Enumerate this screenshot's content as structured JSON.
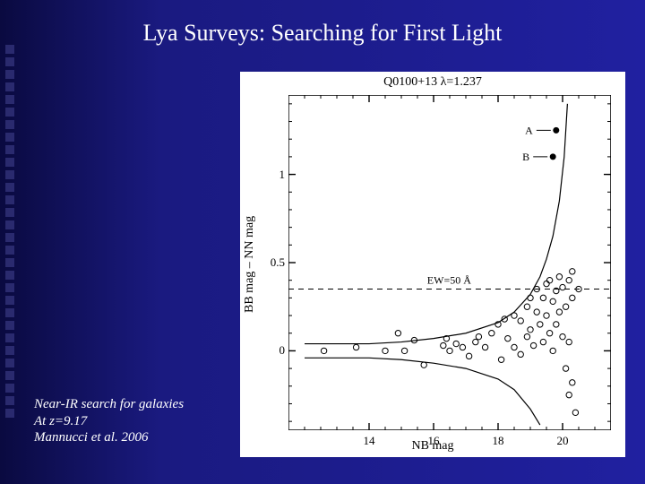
{
  "slide": {
    "title": "Lya Surveys: Searching for First Light",
    "caption_line1": "Near-IR search for galaxies",
    "caption_line2": "At z=9.17",
    "caption_line3": "Mannucci et al. 2006",
    "background_gradient": [
      "#0a0a40",
      "#1a1a80",
      "#2020a0"
    ],
    "decor_color": "#5a5ab0"
  },
  "chart": {
    "type": "scatter",
    "title": "Q0100+13   λ=1.237",
    "title_fontsize": 14,
    "xlabel": "NB mag",
    "ylabel": "BB mag – NN mag",
    "label_fontsize": 14,
    "xlim": [
      11.5,
      21.5
    ],
    "ylim": [
      -0.45,
      1.45
    ],
    "xticks": [
      14,
      16,
      18,
      20
    ],
    "yticks": [
      0,
      0.5,
      1
    ],
    "minor_tick_step_x": 0.5,
    "minor_tick_step_y": 0.1,
    "background_color": "#ffffff",
    "axis_color": "#000000",
    "ew_line": {
      "y": 0.35,
      "label": "EW=50 Å",
      "style": "dashed"
    },
    "labeled_points": [
      {
        "id": "A",
        "x": 19.8,
        "y": 1.25,
        "filled": true
      },
      {
        "id": "B",
        "x": 19.7,
        "y": 1.1,
        "filled": true
      }
    ],
    "curves": {
      "upper": [
        [
          12.0,
          0.04
        ],
        [
          14.0,
          0.04
        ],
        [
          15.0,
          0.05
        ],
        [
          16.0,
          0.07
        ],
        [
          17.0,
          0.1
        ],
        [
          18.0,
          0.16
        ],
        [
          18.5,
          0.22
        ],
        [
          19.0,
          0.32
        ],
        [
          19.3,
          0.42
        ],
        [
          19.5,
          0.52
        ],
        [
          19.7,
          0.65
        ],
        [
          19.9,
          0.85
        ],
        [
          20.05,
          1.1
        ],
        [
          20.15,
          1.4
        ]
      ],
      "lower": [
        [
          12.0,
          -0.04
        ],
        [
          14.0,
          -0.04
        ],
        [
          15.0,
          -0.05
        ],
        [
          16.0,
          -0.07
        ],
        [
          17.0,
          -0.1
        ],
        [
          18.0,
          -0.16
        ],
        [
          18.5,
          -0.22
        ],
        [
          19.0,
          -0.33
        ],
        [
          19.3,
          -0.42
        ]
      ]
    },
    "open_points": [
      [
        12.6,
        0.0
      ],
      [
        13.6,
        0.02
      ],
      [
        14.5,
        0.0
      ],
      [
        14.9,
        0.1
      ],
      [
        15.1,
        0.0
      ],
      [
        15.4,
        0.06
      ],
      [
        15.7,
        -0.08
      ],
      [
        16.3,
        0.03
      ],
      [
        16.4,
        0.07
      ],
      [
        16.5,
        0.0
      ],
      [
        16.7,
        0.04
      ],
      [
        16.9,
        0.02
      ],
      [
        17.1,
        -0.03
      ],
      [
        17.3,
        0.05
      ],
      [
        17.4,
        0.08
      ],
      [
        17.6,
        0.02
      ],
      [
        17.8,
        0.1
      ],
      [
        18.0,
        0.15
      ],
      [
        18.1,
        -0.05
      ],
      [
        18.2,
        0.18
      ],
      [
        18.3,
        0.07
      ],
      [
        18.5,
        0.2
      ],
      [
        18.5,
        0.02
      ],
      [
        18.7,
        0.17
      ],
      [
        18.7,
        -0.02
      ],
      [
        18.9,
        0.25
      ],
      [
        18.9,
        0.08
      ],
      [
        19.0,
        0.3
      ],
      [
        19.0,
        0.12
      ],
      [
        19.1,
        0.03
      ],
      [
        19.2,
        0.22
      ],
      [
        19.2,
        0.35
      ],
      [
        19.3,
        0.15
      ],
      [
        19.4,
        0.3
      ],
      [
        19.4,
        0.05
      ],
      [
        19.5,
        0.38
      ],
      [
        19.5,
        0.2
      ],
      [
        19.6,
        0.1
      ],
      [
        19.6,
        0.4
      ],
      [
        19.7,
        0.28
      ],
      [
        19.7,
        0.0
      ],
      [
        19.8,
        0.34
      ],
      [
        19.8,
        0.15
      ],
      [
        19.9,
        0.42
      ],
      [
        19.9,
        0.22
      ],
      [
        20.0,
        0.08
      ],
      [
        20.0,
        0.36
      ],
      [
        20.1,
        -0.1
      ],
      [
        20.1,
        0.25
      ],
      [
        20.2,
        0.4
      ],
      [
        20.2,
        0.05
      ],
      [
        20.2,
        -0.25
      ],
      [
        20.3,
        0.3
      ],
      [
        20.3,
        -0.18
      ],
      [
        20.3,
        0.45
      ],
      [
        20.4,
        -0.35
      ],
      [
        20.5,
        0.35
      ]
    ],
    "point_style": {
      "open_marker": "circle",
      "open_radius": 3.2,
      "open_stroke": "#000000",
      "open_fill": "none",
      "filled_fill": "#000000",
      "filled_radius": 3.5,
      "line_width": 1.2
    }
  }
}
